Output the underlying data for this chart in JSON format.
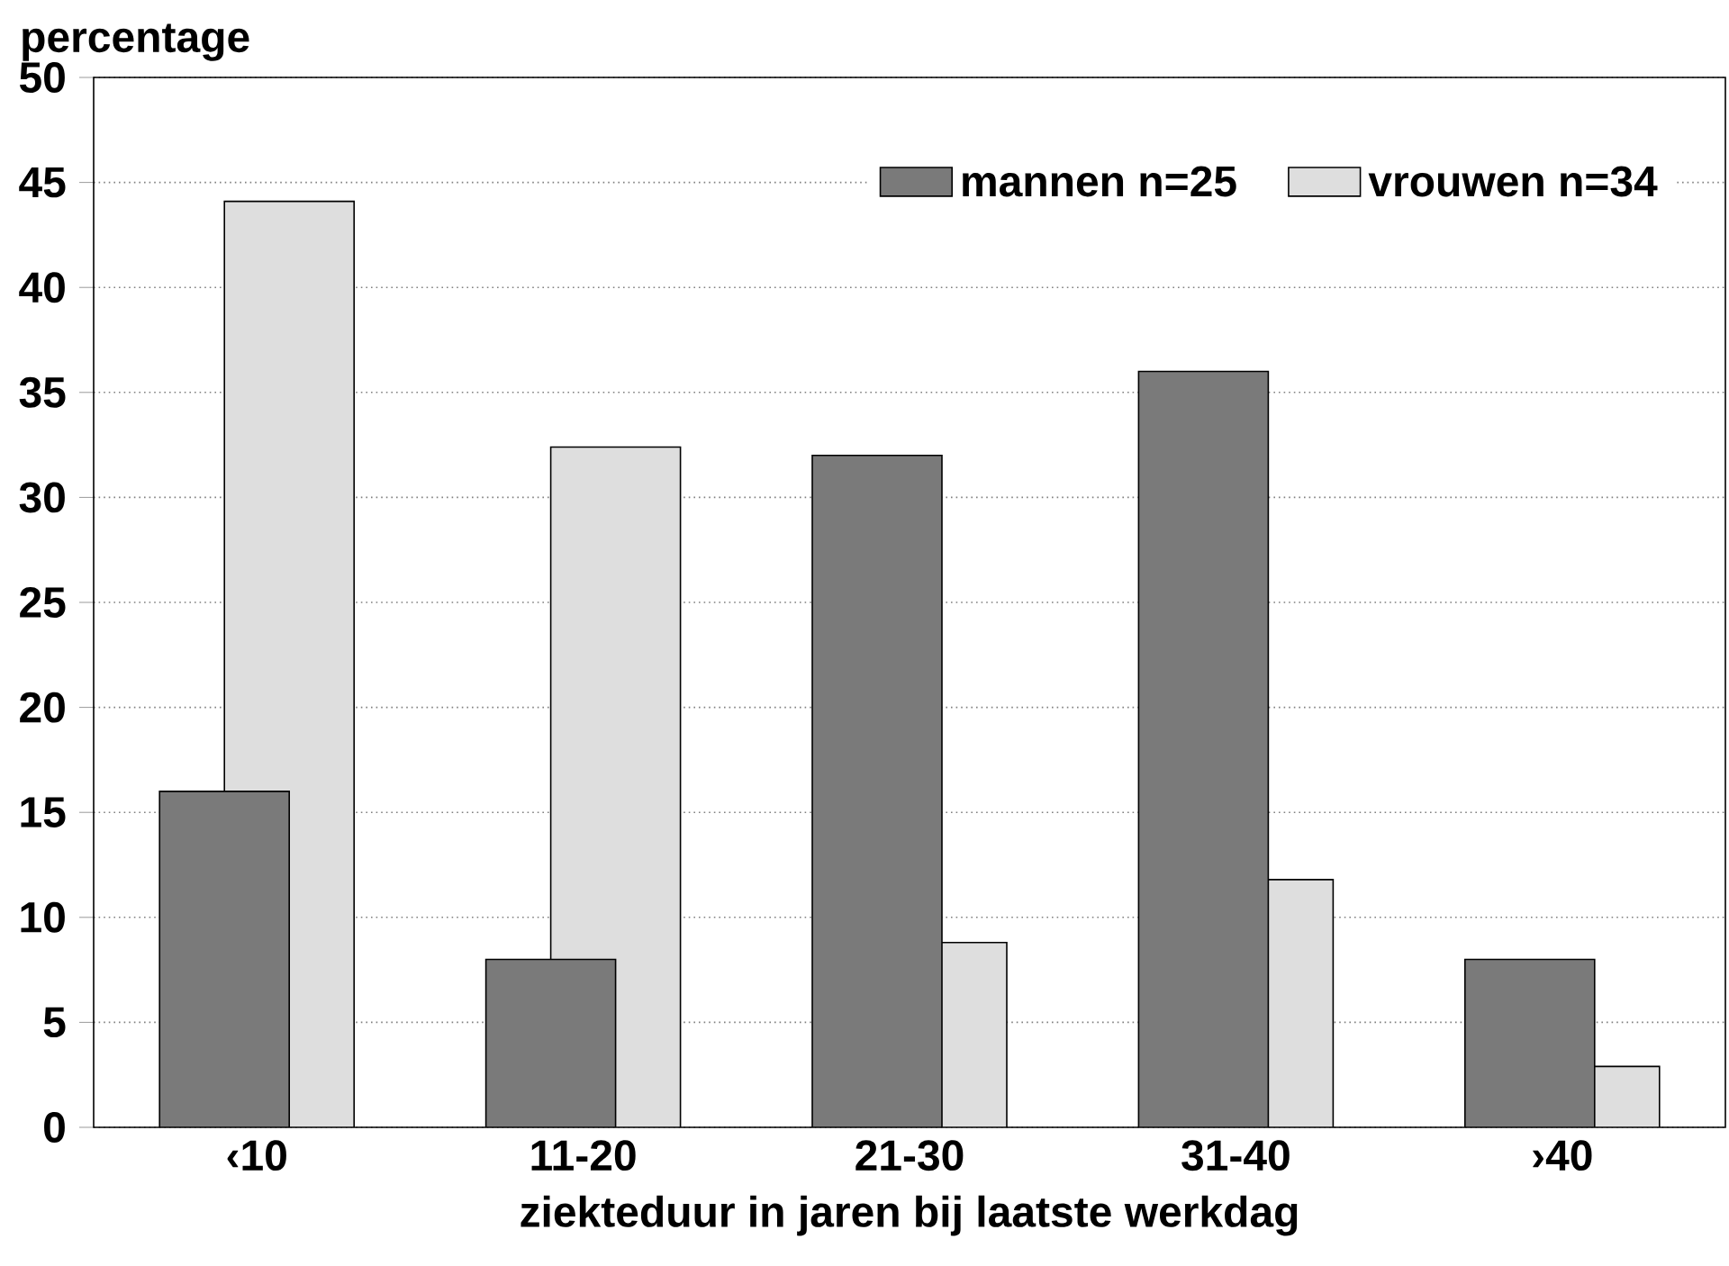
{
  "chart_data": {
    "type": "bar",
    "ylabel": "percentage",
    "xlabel": "ziekteduur in jaren bij laatste werkdag",
    "categories": [
      "‹10",
      "11-20",
      "21-30",
      "31-40",
      "›40"
    ],
    "series": [
      {
        "name": "mannen n=25",
        "color": "#7a7a7a",
        "values": [
          16,
          8,
          32,
          36,
          8
        ]
      },
      {
        "name": "vrouwen n=34",
        "color": "#dedede",
        "values": [
          44.1,
          32.4,
          8.8,
          11.8,
          2.9
        ]
      }
    ],
    "ylim": [
      0,
      50
    ],
    "yticks": [
      0,
      5,
      10,
      15,
      20,
      25,
      30,
      35,
      40,
      45,
      50
    ],
    "grid": "y",
    "legend": "top right"
  }
}
